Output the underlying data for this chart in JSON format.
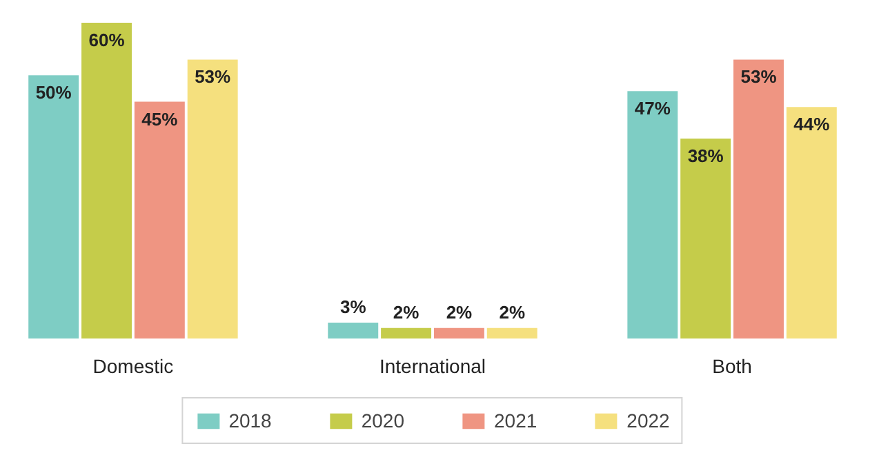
{
  "chart_data": {
    "type": "bar",
    "categories": [
      "Domestic",
      "International",
      "Both"
    ],
    "series": [
      {
        "name": "2018",
        "color": "#7ecdc4",
        "values": [
          50,
          3,
          47
        ],
        "value_labels": [
          "50%",
          "3%",
          "47%"
        ]
      },
      {
        "name": "2020",
        "color": "#c5cc4a",
        "values": [
          60,
          2,
          38
        ],
        "value_labels": [
          "60%",
          "2%",
          "38%"
        ]
      },
      {
        "name": "2021",
        "color": "#ef9582",
        "values": [
          45,
          2,
          53
        ],
        "value_labels": [
          "45%",
          "2%",
          "53%"
        ]
      },
      {
        "name": "2022",
        "color": "#f5e07e",
        "values": [
          53,
          2,
          44
        ],
        "value_labels": [
          "53%",
          "2%",
          "44%"
        ]
      }
    ],
    "legend": "bottom"
  }
}
